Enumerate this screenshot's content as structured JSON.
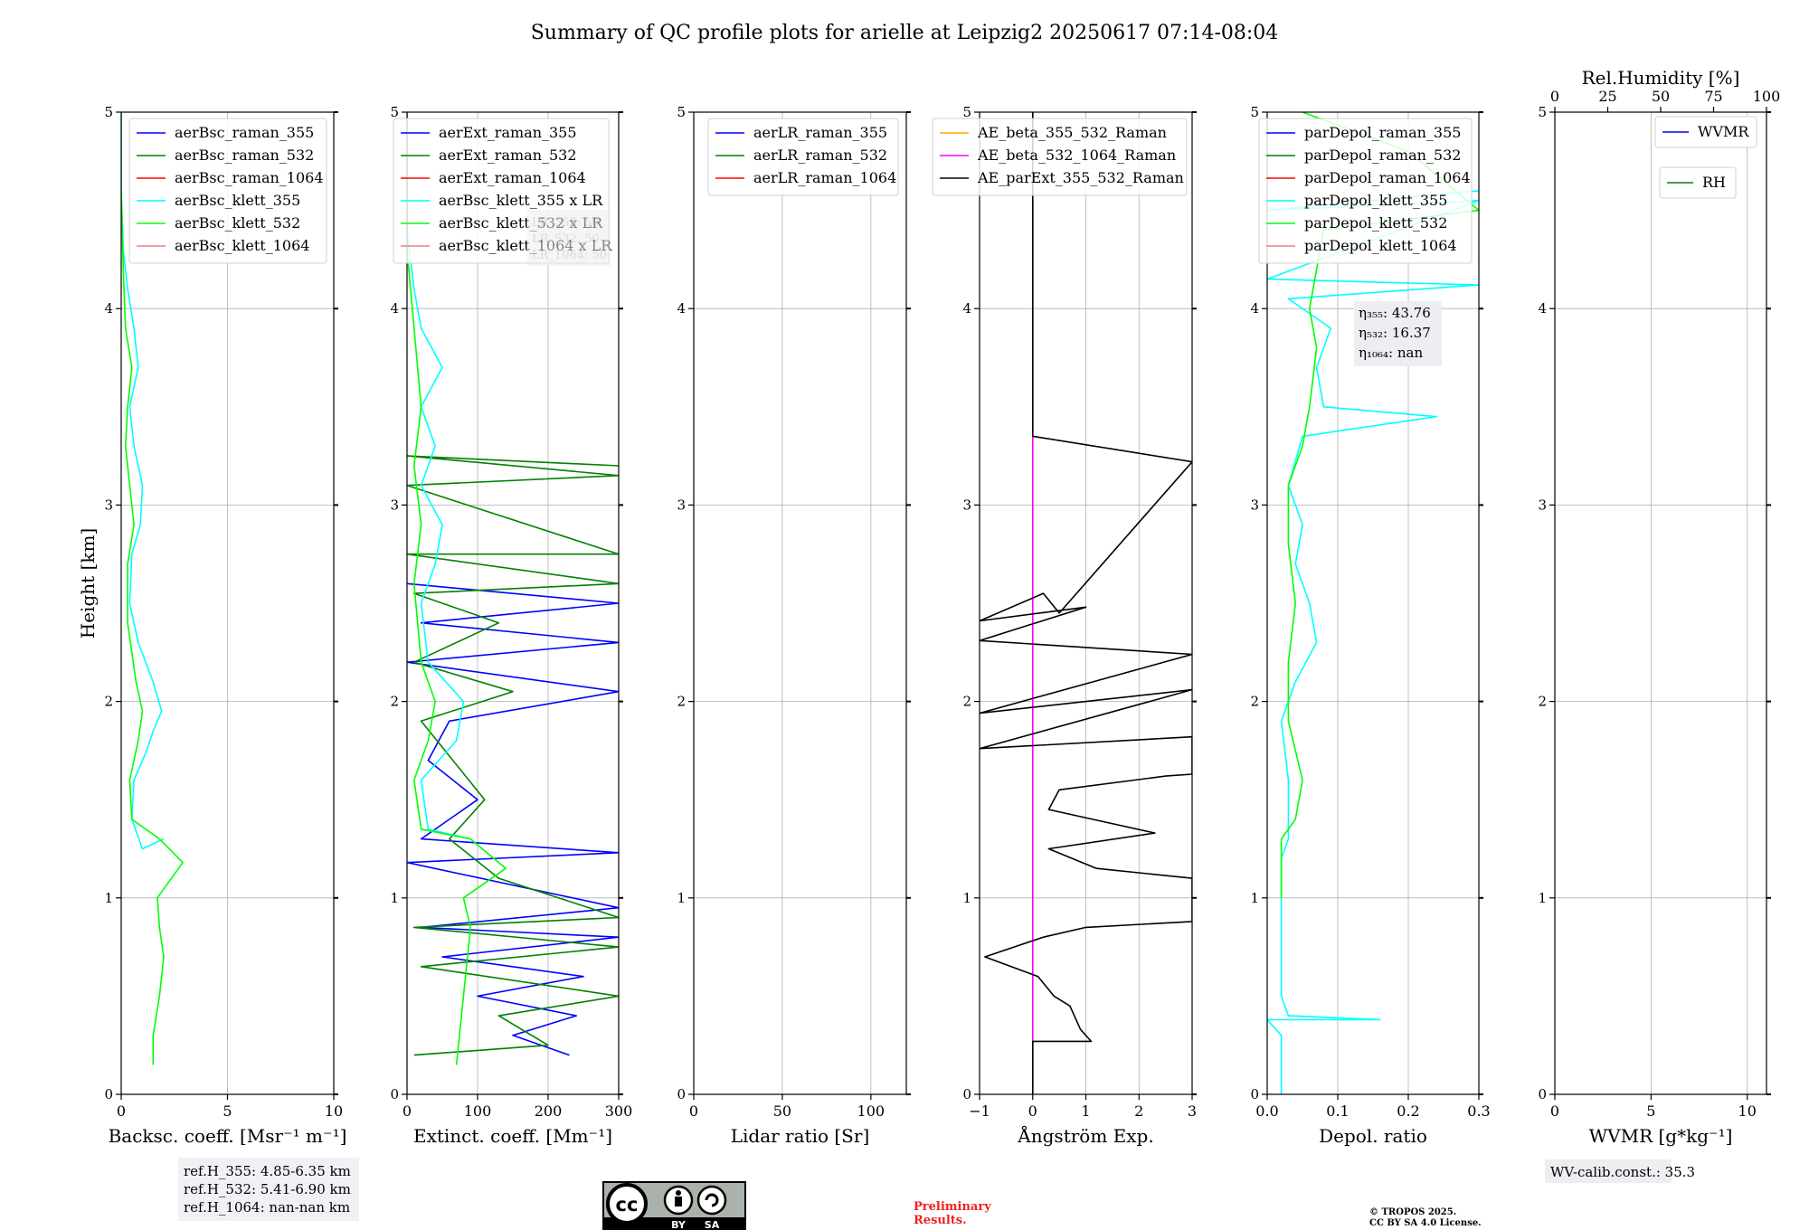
{
  "title": "Summary of QC profile plots for arielle at Leipzig2 20250617 07:14-08:04",
  "ylabel": "Height [km]",
  "y_ticks": [
    "0",
    "1",
    "2",
    "3",
    "4",
    "5"
  ],
  "colors": {
    "blue": "#0000ff",
    "green": "#008000",
    "red": "#ff0000",
    "cyan": "#00ffff",
    "lime": "#00ff00",
    "pink": "#f08080",
    "orange": "#ffa500",
    "magenta": "#ff00ff",
    "black": "#000000"
  },
  "chart_data": [
    {
      "type": "line",
      "xlabel": "Backsc. coeff. [Msr⁻¹ m⁻¹]",
      "xlim": [
        0,
        10
      ],
      "ylim": [
        0,
        5
      ],
      "x_ticks": [
        0,
        5,
        10
      ],
      "grid": true,
      "legend_position": "top-right",
      "series": [
        {
          "name": "aerBsc_raman_355",
          "color": "blue",
          "points": []
        },
        {
          "name": "aerBsc_raman_532",
          "color": "green",
          "points": []
        },
        {
          "name": "aerBsc_raman_1064",
          "color": "red",
          "points": []
        },
        {
          "name": "aerBsc_klett_355",
          "color": "cyan",
          "points": [
            [
              2.0,
              1.3
            ],
            [
              1.0,
              1.25
            ],
            [
              0.5,
              1.4
            ],
            [
              0.6,
              1.6
            ],
            [
              1.2,
              1.75
            ],
            [
              1.5,
              1.85
            ],
            [
              1.9,
              1.95
            ],
            [
              1.5,
              2.1
            ],
            [
              0.8,
              2.3
            ],
            [
              0.4,
              2.5
            ],
            [
              0.5,
              2.75
            ],
            [
              0.9,
              2.9
            ],
            [
              1.0,
              3.1
            ],
            [
              0.6,
              3.3
            ],
            [
              0.4,
              3.5
            ],
            [
              0.8,
              3.7
            ],
            [
              0.6,
              3.9
            ],
            [
              0.3,
              4.1
            ],
            [
              0.1,
              4.3
            ],
            [
              0.0,
              4.6
            ],
            [
              0.0,
              5.0
            ]
          ]
        },
        {
          "name": "aerBsc_klett_532",
          "color": "lime",
          "points": [
            [
              1.5,
              0.15
            ],
            [
              1.5,
              0.3
            ],
            [
              1.8,
              0.5
            ],
            [
              2.0,
              0.7
            ],
            [
              1.8,
              0.85
            ],
            [
              1.7,
              1.0
            ],
            [
              2.9,
              1.18
            ],
            [
              1.8,
              1.3
            ],
            [
              0.5,
              1.4
            ],
            [
              0.4,
              1.6
            ],
            [
              0.8,
              1.8
            ],
            [
              1.0,
              1.95
            ],
            [
              0.7,
              2.1
            ],
            [
              0.3,
              2.4
            ],
            [
              0.3,
              2.7
            ],
            [
              0.6,
              2.9
            ],
            [
              0.4,
              3.1
            ],
            [
              0.2,
              3.3
            ],
            [
              0.3,
              3.5
            ],
            [
              0.5,
              3.7
            ],
            [
              0.2,
              3.9
            ],
            [
              0.1,
              4.2
            ],
            [
              0.0,
              4.6
            ],
            [
              0.0,
              5.0
            ]
          ]
        },
        {
          "name": "aerBsc_klett_1064",
          "color": "pink",
          "points": []
        }
      ]
    },
    {
      "type": "line",
      "xlabel": "Extinct. coeff. [Mm⁻¹]",
      "xlim": [
        0,
        300
      ],
      "ylim": [
        0,
        5
      ],
      "x_ticks": [
        0,
        100,
        200,
        300
      ],
      "grid": true,
      "legend_position": "top-right",
      "series": [
        {
          "name": "aerExt_raman_355",
          "color": "blue",
          "points": [
            [
              230,
              0.2
            ],
            [
              150,
              0.3
            ],
            [
              240,
              0.4
            ],
            [
              100,
              0.5
            ],
            [
              250,
              0.6
            ],
            [
              50,
              0.7
            ],
            [
              300,
              0.8
            ],
            [
              20,
              0.85
            ],
            [
              300,
              0.95
            ],
            [
              0,
              1.18
            ],
            [
              300,
              1.23
            ],
            [
              20,
              1.3
            ],
            [
              100,
              1.5
            ],
            [
              30,
              1.7
            ],
            [
              60,
              1.9
            ],
            [
              300,
              2.05
            ],
            [
              0,
              2.2
            ],
            [
              300,
              2.3
            ],
            [
              20,
              2.4
            ],
            [
              300,
              2.5
            ],
            [
              0,
              2.6
            ]
          ]
        },
        {
          "name": "aerExt_raman_532",
          "color": "green",
          "points": [
            [
              10,
              0.2
            ],
            [
              200,
              0.25
            ],
            [
              130,
              0.4
            ],
            [
              300,
              0.5
            ],
            [
              20,
              0.65
            ],
            [
              300,
              0.75
            ],
            [
              10,
              0.85
            ],
            [
              300,
              0.9
            ],
            [
              130,
              1.1
            ],
            [
              60,
              1.3
            ],
            [
              110,
              1.5
            ],
            [
              20,
              1.9
            ],
            [
              150,
              2.05
            ],
            [
              10,
              2.2
            ],
            [
              130,
              2.4
            ],
            [
              10,
              2.55
            ],
            [
              300,
              2.6
            ],
            [
              0,
              2.75
            ],
            [
              300,
              2.75
            ],
            [
              0,
              3.1
            ],
            [
              300,
              3.15
            ],
            [
              0,
              3.25
            ],
            [
              300,
              3.2
            ]
          ]
        },
        {
          "name": "aerExt_raman_1064",
          "color": "red",
          "points": []
        },
        {
          "name": "aerBsc_klett_355 x LR",
          "color": "cyan",
          "points": [
            [
              90,
              1.3
            ],
            [
              30,
              1.35
            ],
            [
              20,
              1.6
            ],
            [
              70,
              1.8
            ],
            [
              80,
              2.0
            ],
            [
              30,
              2.2
            ],
            [
              20,
              2.5
            ],
            [
              40,
              2.7
            ],
            [
              50,
              2.9
            ],
            [
              20,
              3.1
            ],
            [
              40,
              3.3
            ],
            [
              20,
              3.5
            ],
            [
              50,
              3.7
            ],
            [
              20,
              3.9
            ],
            [
              10,
              4.1
            ],
            [
              0,
              4.4
            ],
            [
              0,
              5.0
            ]
          ]
        },
        {
          "name": "aerBsc_klett_532 x LR",
          "color": "lime",
          "points": [
            [
              70,
              0.15
            ],
            [
              80,
              0.5
            ],
            [
              90,
              0.85
            ],
            [
              80,
              1.0
            ],
            [
              140,
              1.15
            ],
            [
              90,
              1.3
            ],
            [
              20,
              1.35
            ],
            [
              10,
              1.6
            ],
            [
              30,
              1.8
            ],
            [
              40,
              2.0
            ],
            [
              20,
              2.2
            ],
            [
              10,
              2.6
            ],
            [
              20,
              2.9
            ],
            [
              10,
              3.2
            ],
            [
              20,
              3.5
            ],
            [
              10,
              3.9
            ],
            [
              0,
              4.3
            ],
            [
              0,
              5.0
            ]
          ]
        },
        {
          "name": "aerBsc_klett_1064 x LR",
          "color": "pink",
          "points": []
        }
      ]
    },
    {
      "type": "line",
      "xlabel": "Lidar ratio [Sr]",
      "xlim": [
        0,
        120
      ],
      "ylim": [
        0,
        5
      ],
      "x_ticks": [
        0,
        50,
        100
      ],
      "grid": true,
      "legend_position": "top-right",
      "series": [
        {
          "name": "aerLR_raman_355",
          "color": "blue",
          "points": []
        },
        {
          "name": "aerLR_raman_532",
          "color": "green",
          "points": []
        },
        {
          "name": "aerLR_raman_1064",
          "color": "red",
          "points": []
        }
      ]
    },
    {
      "type": "line",
      "xlabel": "Ångström Exp.",
      "xlim": [
        -1,
        3
      ],
      "ylim": [
        0,
        5
      ],
      "x_ticks": [
        -1,
        0,
        1,
        2,
        3
      ],
      "x_tick_labels": [
        "−1",
        "0",
        "1",
        "2",
        "3"
      ],
      "grid": true,
      "legend_position": "top-right",
      "series": [
        {
          "name": "AE_beta_355_532_Raman",
          "color": "orange",
          "points": []
        },
        {
          "name": "AE_beta_532_1064_Raman",
          "color": "magenta",
          "points": [
            [
              0,
              0.25
            ],
            [
              0,
              3.35
            ]
          ]
        },
        {
          "name": "AE_parExt_355_532_Raman",
          "color": "black",
          "points": [
            [
              0,
              0.0
            ],
            [
              0,
              0.27
            ],
            [
              1.1,
              0.27
            ],
            [
              0.9,
              0.33
            ],
            [
              0.7,
              0.45
            ],
            [
              0.4,
              0.5
            ],
            [
              0.1,
              0.6
            ],
            [
              -0.9,
              0.7
            ],
            [
              0.2,
              0.8
            ],
            [
              1.0,
              0.85
            ],
            [
              3.0,
              0.88
            ],
            [
              3.0,
              1.1
            ],
            [
              1.2,
              1.15
            ],
            [
              0.3,
              1.25
            ],
            [
              2.3,
              1.33
            ],
            [
              0.3,
              1.45
            ],
            [
              0.5,
              1.55
            ],
            [
              2.5,
              1.62
            ],
            [
              3.0,
              1.63
            ],
            [
              3.0,
              1.82
            ],
            [
              -1.0,
              1.76
            ],
            [
              3.0,
              2.06
            ],
            [
              -1.0,
              1.94
            ],
            [
              3.0,
              2.24
            ],
            [
              -1.0,
              2.31
            ],
            [
              1.0,
              2.48
            ],
            [
              -1.0,
              2.41
            ],
            [
              0.2,
              2.55
            ],
            [
              0.5,
              2.45
            ],
            [
              3.0,
              3.22
            ],
            [
              0,
              3.35
            ],
            [
              0,
              5.0
            ]
          ]
        }
      ]
    },
    {
      "type": "line",
      "xlabel": "Depol. ratio",
      "xlim": [
        0,
        0.3
      ],
      "ylim": [
        0,
        5
      ],
      "x_ticks": [
        0,
        0.1,
        0.2,
        0.3
      ],
      "x_tick_labels": [
        "0.0",
        "0.1",
        "0.2",
        "0.3"
      ],
      "grid": true,
      "legend_position": "top-left",
      "series": [
        {
          "name": "parDepol_raman_355",
          "color": "blue",
          "points": []
        },
        {
          "name": "parDepol_raman_532",
          "color": "green",
          "points": []
        },
        {
          "name": "parDepol_raman_1064",
          "color": "red",
          "points": []
        },
        {
          "name": "parDepol_klett_355",
          "color": "cyan",
          "points": [
            [
              0.02,
              0.0
            ],
            [
              0.02,
              0.3
            ],
            [
              0.0,
              0.38
            ],
            [
              0.16,
              0.38
            ],
            [
              0.03,
              0.4
            ],
            [
              0.02,
              0.5
            ],
            [
              0.02,
              1.2
            ],
            [
              0.03,
              1.3
            ],
            [
              0.03,
              1.6
            ],
            [
              0.02,
              1.9
            ],
            [
              0.04,
              2.1
            ],
            [
              0.07,
              2.3
            ],
            [
              0.06,
              2.5
            ],
            [
              0.04,
              2.7
            ],
            [
              0.05,
              2.9
            ],
            [
              0.03,
              3.1
            ],
            [
              0.05,
              3.35
            ],
            [
              0.24,
              3.45
            ],
            [
              0.08,
              3.5
            ],
            [
              0.07,
              3.7
            ],
            [
              0.09,
              3.9
            ],
            [
              0.03,
              4.05
            ],
            [
              0.3,
              4.12
            ],
            [
              0.0,
              4.15
            ],
            [
              0.3,
              4.55
            ],
            [
              0.0,
              4.5
            ],
            [
              0.3,
              4.6
            ]
          ]
        },
        {
          "name": "parDepol_klett_532",
          "color": "lime",
          "points": [
            [
              0.02,
              1.0
            ],
            [
              0.02,
              1.3
            ],
            [
              0.04,
              1.4
            ],
            [
              0.05,
              1.6
            ],
            [
              0.03,
              1.9
            ],
            [
              0.03,
              2.2
            ],
            [
              0.04,
              2.5
            ],
            [
              0.03,
              2.8
            ],
            [
              0.03,
              3.1
            ],
            [
              0.05,
              3.3
            ],
            [
              0.06,
              3.5
            ],
            [
              0.07,
              3.8
            ],
            [
              0.06,
              4.0
            ],
            [
              0.07,
              4.2
            ],
            [
              0.08,
              4.4
            ],
            [
              0.3,
              4.5
            ],
            [
              0.2,
              4.8
            ],
            [
              0.05,
              5.0
            ]
          ]
        },
        {
          "name": "parDepol_klett_1064",
          "color": "pink",
          "points": []
        }
      ]
    },
    {
      "type": "line",
      "xlabel": "WVMR [g*kg⁻¹]",
      "x2label": "Rel.Humidity [%]",
      "xlim": [
        0,
        11
      ],
      "ylim": [
        0,
        5
      ],
      "x_ticks": [
        0,
        5,
        10
      ],
      "x2lim": [
        0,
        100
      ],
      "x2_ticks": [
        0,
        25,
        50,
        75,
        100
      ],
      "grid": true,
      "legend_position": "top-right",
      "series": [
        {
          "name": "WVMR",
          "color": "blue",
          "points": []
        },
        {
          "name": "RH",
          "color": "green",
          "points": []
        }
      ]
    }
  ],
  "annotations": {
    "ref_h": [
      "ref.H_355: 4.85-6.35 km",
      "ref.H_532: 5.41-6.90 km",
      "ref.H_1064: nan-nan km"
    ],
    "ghost_box": [
      "LR_355: 50",
      "LR_532: 50",
      "LR_1064: 50"
    ],
    "eta": {
      "eta355_label": "η₃₅₅: ",
      "eta355_value": "43.76",
      "eta532_label": "η₅₃₂: ",
      "eta532_value": "16.37",
      "eta1064_label": "η₁₀₆₄: ",
      "eta1064_value": "nan"
    },
    "wv_calib": "WV-calib.const.: 35.3",
    "preliminary": [
      "Preliminary",
      "Results."
    ],
    "copyright": [
      "© TROPOS 2025.",
      "CC BY SA 4.0 License."
    ],
    "license_badge": {
      "cc": "cc",
      "by": "BY",
      "sa": "SA"
    }
  }
}
